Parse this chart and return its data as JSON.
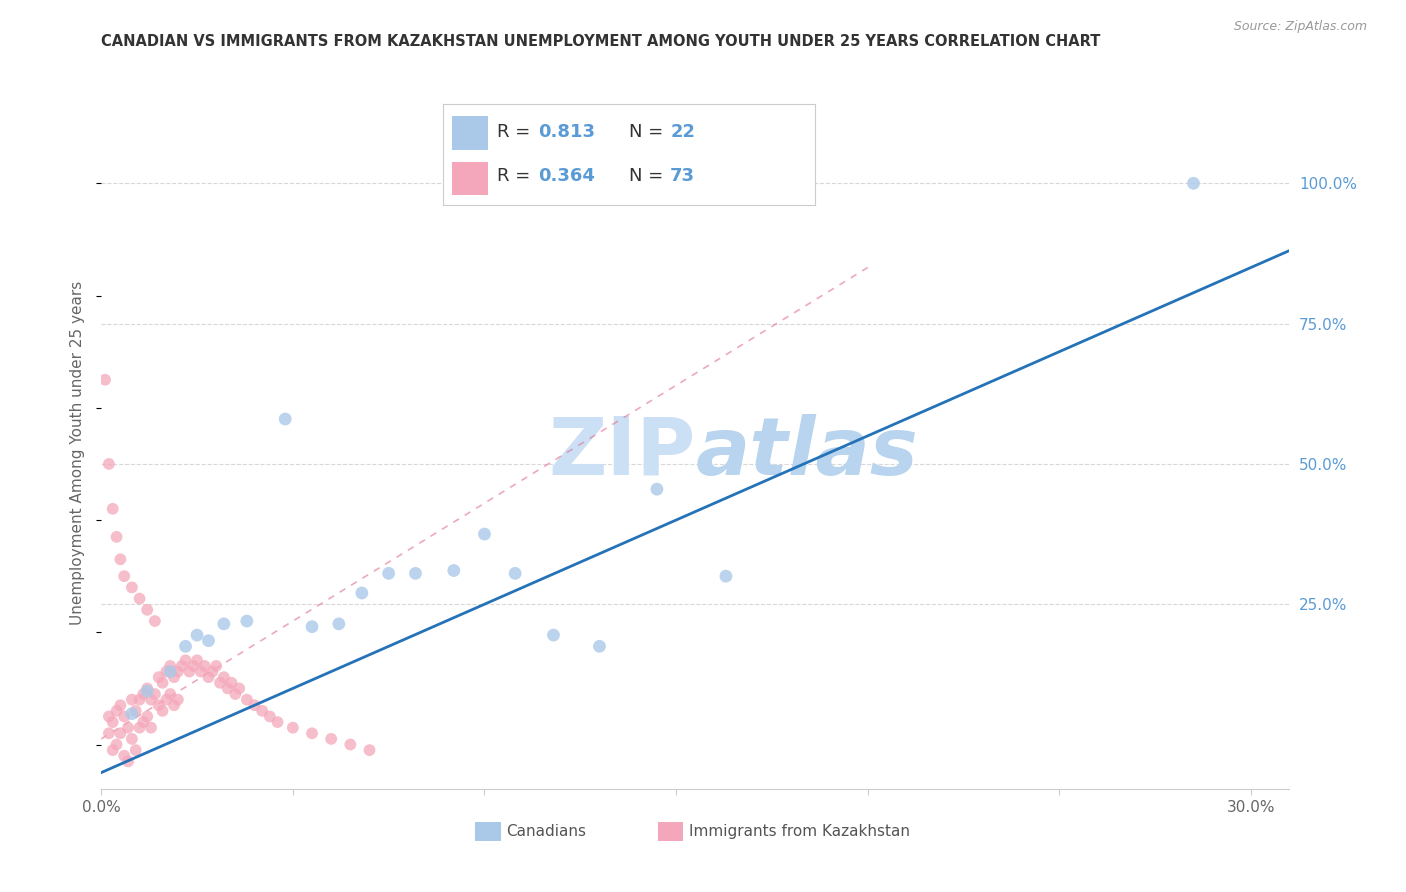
{
  "title": "CANADIAN VS IMMIGRANTS FROM KAZAKHSTAN UNEMPLOYMENT AMONG YOUTH UNDER 25 YEARS CORRELATION CHART",
  "source": "Source: ZipAtlas.com",
  "ylabel": "Unemployment Among Youth under 25 years",
  "xlim": [
    0.0,
    0.31
  ],
  "ylim": [
    -0.08,
    1.12
  ],
  "blue_color": "#aac9e8",
  "pink_color": "#f4a7ba",
  "trend_blue_color": "#2472b8",
  "trend_pink_color": "#e07090",
  "grid_color": "#d8d8d8",
  "watermark_color": "#cce0f5",
  "background_color": "#ffffff",
  "title_color": "#333333",
  "source_color": "#999999",
  "axis_label_color": "#666666",
  "right_tick_color": "#5b9bd5",
  "legend_value_color": "#5b9bd5",
  "blue_scatter_x": [
    0.008,
    0.012,
    0.018,
    0.022,
    0.025,
    0.028,
    0.032,
    0.038,
    0.048,
    0.055,
    0.062,
    0.068,
    0.075,
    0.082,
    0.092,
    0.1,
    0.108,
    0.118,
    0.13,
    0.145,
    0.163,
    0.285
  ],
  "blue_scatter_y": [
    0.055,
    0.095,
    0.13,
    0.175,
    0.195,
    0.185,
    0.215,
    0.22,
    0.58,
    0.21,
    0.215,
    0.27,
    0.305,
    0.305,
    0.31,
    0.375,
    0.305,
    0.195,
    0.175,
    0.455,
    0.3,
    1.0
  ],
  "pink_scatter_x": [
    0.002,
    0.002,
    0.003,
    0.003,
    0.004,
    0.004,
    0.005,
    0.005,
    0.006,
    0.006,
    0.007,
    0.007,
    0.008,
    0.008,
    0.009,
    0.009,
    0.01,
    0.01,
    0.011,
    0.011,
    0.012,
    0.012,
    0.013,
    0.013,
    0.014,
    0.015,
    0.015,
    0.016,
    0.016,
    0.017,
    0.017,
    0.018,
    0.018,
    0.019,
    0.019,
    0.02,
    0.02,
    0.021,
    0.022,
    0.023,
    0.024,
    0.025,
    0.026,
    0.027,
    0.028,
    0.029,
    0.03,
    0.031,
    0.032,
    0.033,
    0.034,
    0.035,
    0.036,
    0.038,
    0.04,
    0.042,
    0.044,
    0.046,
    0.05,
    0.055,
    0.06,
    0.065,
    0.07,
    0.001,
    0.002,
    0.003,
    0.004,
    0.005,
    0.006,
    0.008,
    0.01,
    0.012,
    0.014
  ],
  "pink_scatter_y": [
    0.05,
    0.02,
    0.04,
    -0.01,
    0.06,
    0.0,
    0.07,
    0.02,
    0.05,
    -0.02,
    0.03,
    -0.03,
    0.08,
    0.01,
    0.06,
    -0.01,
    0.08,
    0.03,
    0.09,
    0.04,
    0.1,
    0.05,
    0.08,
    0.03,
    0.09,
    0.12,
    0.07,
    0.11,
    0.06,
    0.13,
    0.08,
    0.14,
    0.09,
    0.12,
    0.07,
    0.13,
    0.08,
    0.14,
    0.15,
    0.13,
    0.14,
    0.15,
    0.13,
    0.14,
    0.12,
    0.13,
    0.14,
    0.11,
    0.12,
    0.1,
    0.11,
    0.09,
    0.1,
    0.08,
    0.07,
    0.06,
    0.05,
    0.04,
    0.03,
    0.02,
    0.01,
    0.0,
    -0.01,
    0.65,
    0.5,
    0.42,
    0.37,
    0.33,
    0.3,
    0.28,
    0.26,
    0.24,
    0.22
  ],
  "blue_trendline_x": [
    0.0,
    0.31
  ],
  "blue_trendline_y": [
    -0.05,
    0.88
  ],
  "pink_trendline_x": [
    0.0,
    0.2
  ],
  "pink_trendline_y": [
    0.01,
    0.85
  ]
}
